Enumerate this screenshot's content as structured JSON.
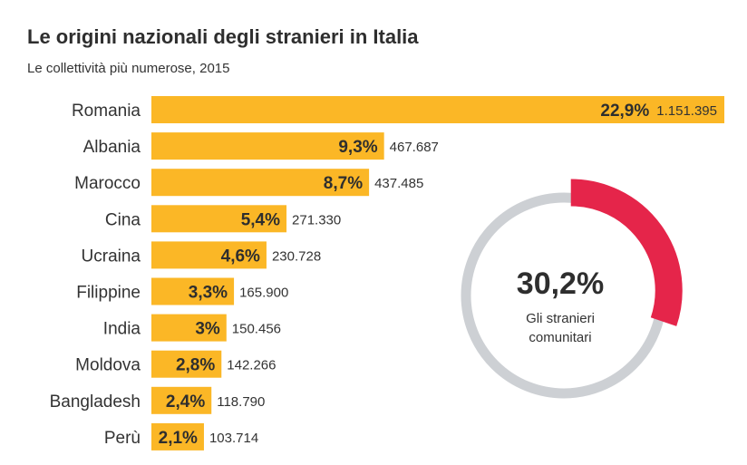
{
  "title": "Le origini nazionali degli stranieri in Italia",
  "subtitle": "Le collettività più numerose, 2015",
  "colors": {
    "bar": "#fbb726",
    "donut_track": "#cdd0d4",
    "donut_highlight": "#e5254a"
  },
  "chart_data": [
    {
      "type": "bar",
      "orientation": "horizontal",
      "categories": [
        "Romania",
        "Albania",
        "Marocco",
        "Cina",
        "Ucraina",
        "Filippine",
        "India",
        "Moldova",
        "Bangladesh",
        "Perù"
      ],
      "values": [
        22.9,
        9.3,
        8.7,
        5.4,
        4.6,
        3.3,
        3.0,
        2.8,
        2.4,
        2.1
      ],
      "value_labels": [
        "22,9%",
        "9,3%",
        "8,7%",
        "5,4%",
        "4,6%",
        "3,3%",
        "3%",
        "2,8%",
        "2,4%",
        "2,1%"
      ],
      "counts": [
        "1.151.395",
        "467.687",
        "437.485",
        "271.330",
        "230.728",
        "165.900",
        "150.456",
        "142.266",
        "118.790",
        "103.714"
      ],
      "xlim": [
        0,
        22.9
      ],
      "grid": false,
      "legend": "none"
    },
    {
      "type": "pie",
      "style": "donut",
      "value": 30.2,
      "value_label": "30,2%",
      "caption_lines": [
        "Gli stranieri",
        "comunitari"
      ]
    }
  ]
}
